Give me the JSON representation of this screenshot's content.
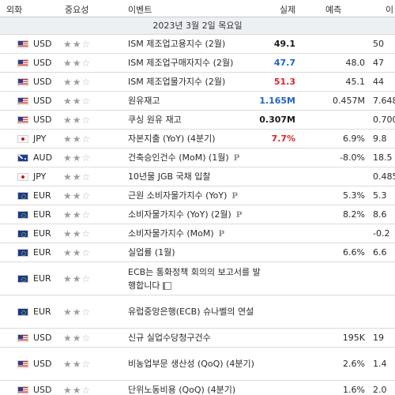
{
  "header": {
    "currency": "외화",
    "importance": "중요성",
    "event": "이벤트",
    "actual": "실제",
    "forecast": "예측",
    "previous": "이"
  },
  "date_label": "2023년 3월 2일 목요일",
  "colors": {
    "actual_blue": "#1f62c8",
    "actual_red": "#d8262c",
    "date_row_bg": "#eceff3"
  },
  "rows": [
    {
      "flag": "us",
      "currency": "USD",
      "stars": 2,
      "event": "ISM 제조업고용지수 (2월)",
      "actual": "49.1",
      "actual_color": "black",
      "forecast": "",
      "previous": "50",
      "badge": ""
    },
    {
      "flag": "us",
      "currency": "USD",
      "stars": 2,
      "event": "ISM 제조업구매자지수 (2월)",
      "actual": "47.7",
      "actual_color": "blue",
      "forecast": "48.0",
      "previous": "47",
      "badge": ""
    },
    {
      "flag": "us",
      "currency": "USD",
      "stars": 2,
      "event": "ISM 제조업물가지수 (2월)",
      "actual": "51.3",
      "actual_color": "red",
      "forecast": "45.1",
      "previous": "44",
      "badge": ""
    },
    {
      "flag": "us",
      "currency": "USD",
      "stars": 2,
      "event": "원유재고",
      "actual": "1.165M",
      "actual_color": "blue",
      "forecast": "0.457M",
      "previous": "7.648",
      "badge": ""
    },
    {
      "flag": "us",
      "currency": "USD",
      "stars": 2,
      "event": "쿠싱 원유 재고",
      "actual": "0.307M",
      "actual_color": "black",
      "forecast": "",
      "previous": "0.700",
      "badge": ""
    },
    {
      "flag": "jp",
      "currency": "JPY",
      "stars": 2,
      "event": "자본지출 (YoY) (4분기)",
      "actual": "7.7%",
      "actual_color": "red",
      "forecast": "6.9%",
      "previous": "9.8",
      "badge": ""
    },
    {
      "flag": "au",
      "currency": "AUD",
      "stars": 2,
      "event": "건축승인건수 (MoM) (1월)",
      "actual": "",
      "actual_color": "black",
      "forecast": "-8.0%",
      "previous": "18.5",
      "badge": "P"
    },
    {
      "flag": "jp",
      "currency": "JPY",
      "stars": 2,
      "event": "10년물 JGB 국채 입찰",
      "actual": "",
      "actual_color": "black",
      "forecast": "",
      "previous": "0.485",
      "badge": ""
    },
    {
      "flag": "eu",
      "currency": "EUR",
      "stars": 2,
      "event": "근원 소비자물가지수 (YoY)",
      "actual": "",
      "actual_color": "black",
      "forecast": "5.3%",
      "previous": "5.3",
      "badge": "P"
    },
    {
      "flag": "eu",
      "currency": "EUR",
      "stars": 2,
      "event": "소비자물가지수 (YoY) (2월)",
      "actual": "",
      "actual_color": "black",
      "forecast": "8.2%",
      "previous": "8.6",
      "badge": "P"
    },
    {
      "flag": "eu",
      "currency": "EUR",
      "stars": 2,
      "event": "소비자물가지수 (MoM)",
      "actual": "",
      "actual_color": "black",
      "forecast": "",
      "previous": "-0.2",
      "badge": "P"
    },
    {
      "flag": "eu",
      "currency": "EUR",
      "stars": 2,
      "event": "실업률 (1월)",
      "actual": "",
      "actual_color": "black",
      "forecast": "6.6%",
      "previous": "6.6",
      "badge": ""
    },
    {
      "flag": "eu",
      "currency": "EUR",
      "stars": 2,
      "event": "ECB는 통화정책 회의의 보고서를 발행합니다",
      "actual": "",
      "actual_color": "black",
      "forecast": "",
      "previous": "",
      "badge": "doc",
      "tall": true
    },
    {
      "flag": "eu",
      "currency": "EUR",
      "stars": 2,
      "event": "유럽중앙은행(ECB) 슈나벨의 연설",
      "actual": "",
      "actual_color": "black",
      "forecast": "",
      "previous": "",
      "badge": "",
      "tall": true
    },
    {
      "flag": "us",
      "currency": "USD",
      "stars": 2,
      "event": "신규 실업수당청구건수",
      "actual": "",
      "actual_color": "black",
      "forecast": "195K",
      "previous": "19",
      "badge": ""
    },
    {
      "flag": "us",
      "currency": "USD",
      "stars": 2,
      "event": "비농업부문 생산성 (QoQ) (4분기)",
      "actual": "",
      "actual_color": "black",
      "forecast": "2.6%",
      "previous": "1.4",
      "badge": "",
      "tall": true
    },
    {
      "flag": "us",
      "currency": "USD",
      "stars": 2,
      "event": "단위노동비용 (QoQ) (4분기)",
      "actual": "",
      "actual_color": "black",
      "forecast": "1.6%",
      "previous": "2.0",
      "badge": ""
    }
  ]
}
